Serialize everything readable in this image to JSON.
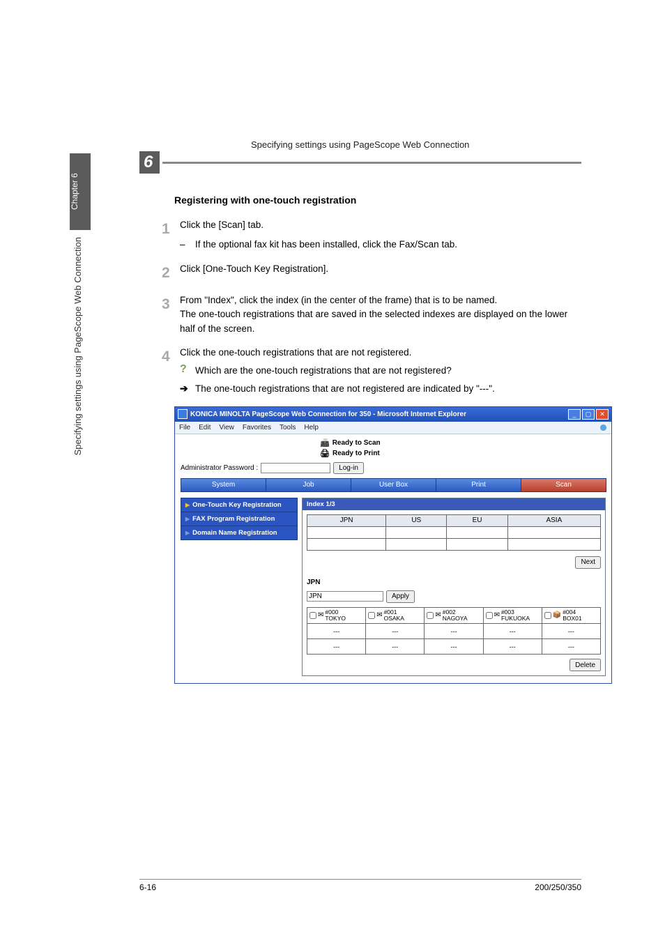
{
  "running_head": "Specifying settings using PageScope Web Connection",
  "chapter_badge": "6",
  "sidebar": {
    "chapter": "Chapter 6",
    "title": "Specifying settings using PageScope Web Connection"
  },
  "section_title": "Registering with one-touch registration",
  "steps": [
    {
      "num": "1",
      "text": "Click the [Scan] tab.",
      "dash": "If the optional fax kit has been installed, click the Fax/Scan tab."
    },
    {
      "num": "2",
      "text": "Click [One-Touch Key Registration]."
    },
    {
      "num": "3",
      "text": "From \"Index\", click the index (in the center of the frame) that is to be named.",
      "text2": "The one-touch registrations that are saved in the selected indexes are displayed on the lower half of the screen."
    },
    {
      "num": "4",
      "text": "Click the one-touch registrations that are not registered.",
      "q": "Which are the one-touch registrations that are not registered?",
      "a": "The one-touch registrations that are not registered are indicated by \"---\"."
    }
  ],
  "ie": {
    "title": "KONICA MINOLTA PageScope Web Connection for 350 - Microsoft Internet Explorer",
    "menus": [
      "File",
      "Edit",
      "View",
      "Favorites",
      "Tools",
      "Help"
    ],
    "ready_scan": "Ready to Scan",
    "ready_print": "Ready to Print",
    "admin_label": "Administrator Password :",
    "login_btn": "Log-in",
    "tabs": [
      "System",
      "Job",
      "User Box",
      "Print",
      "Scan"
    ],
    "nav_items": [
      {
        "label": "One-Touch Key Registration",
        "active": true
      },
      {
        "label": "FAX Program Registration",
        "active": false
      },
      {
        "label": "Domain Name Registration",
        "active": false
      }
    ],
    "panel_head": "Index 1/3",
    "idx_headers": [
      "JPN",
      "US",
      "EU",
      "ASIA"
    ],
    "next_btn": "Next",
    "group_label": "JPN",
    "group_input": "JPN",
    "apply_btn": "Apply",
    "entries": [
      {
        "num": "#000",
        "name": "TOKYO",
        "icon": "✉"
      },
      {
        "num": "#001",
        "name": "OSAKA",
        "icon": "✉"
      },
      {
        "num": "#002",
        "name": "NAGOYA",
        "icon": "✉"
      },
      {
        "num": "#003",
        "name": "FUKUOKA",
        "icon": "✉"
      },
      {
        "num": "#004",
        "name": "BOX01",
        "icon": "📦"
      }
    ],
    "empty": "---",
    "delete_btn": "Delete"
  },
  "footer": {
    "left": "6-16",
    "right": "200/250/350"
  }
}
